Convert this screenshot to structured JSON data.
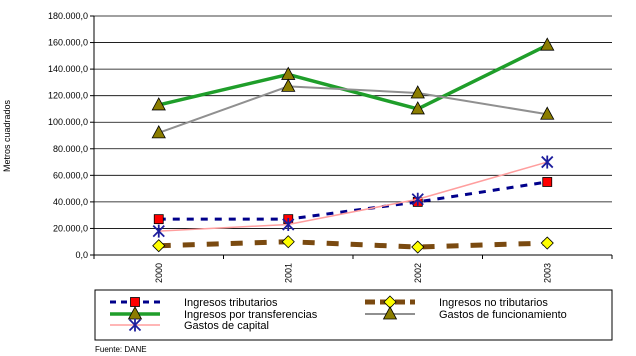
{
  "chart_data": {
    "type": "line",
    "title": "",
    "xlabel": "",
    "ylabel": "Metros cuadrados",
    "categories": [
      "2000",
      "2001",
      "2002",
      "2003"
    ],
    "ylim": [
      0,
      180000
    ],
    "ytick_step": 20000,
    "ytick_labels": [
      "0,0",
      "20.000,0",
      "40.000,0",
      "60.000,0",
      "80.000,0",
      "100.000,0",
      "120.000,0",
      "140.000,0",
      "160.000,0",
      "180.000,0"
    ],
    "grid": true,
    "series": [
      {
        "name": "Ingresos tributarios",
        "values": [
          27000,
          27000,
          40000,
          55000
        ],
        "color": "#00008b",
        "line_style": "dashed",
        "marker": "square",
        "marker_color": "#ff0000"
      },
      {
        "name": "Ingresos no tributarios",
        "values": [
          7000,
          10000,
          6000,
          9000
        ],
        "color": "#7a4a10",
        "line_style": "dashed",
        "marker": "diamond",
        "marker_color": "#ffff00"
      },
      {
        "name": "Ingresos por transferencias",
        "values": [
          113000,
          136000,
          110000,
          158000
        ],
        "color": "#1f9e2a",
        "line_style": "solid",
        "marker": "triangle",
        "marker_color": "#8b7d00"
      },
      {
        "name": "Gastos de funcionamiento",
        "values": [
          92000,
          127000,
          122000,
          106000
        ],
        "color": "#909090",
        "line_style": "solid",
        "marker": "triangle",
        "marker_color": "#8b7d00"
      },
      {
        "name": "Gastos de capital",
        "values": [
          18000,
          23000,
          42000,
          70000
        ],
        "color": "#ff9e9e",
        "line_style": "solid",
        "marker": "star",
        "marker_color": "#1c1c9c"
      }
    ],
    "legend_position": "bottom"
  },
  "source_note": "Fuente:  DANE"
}
